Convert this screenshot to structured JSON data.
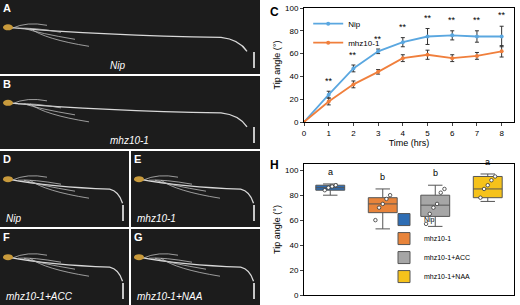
{
  "chart_data": [
    {
      "type": "line",
      "panel": "C",
      "x_label": "Time (hrs)",
      "y_label": "Tip angle (°)",
      "x": [
        0,
        1,
        2,
        3,
        4,
        5,
        6,
        7,
        8
      ],
      "xlim": [
        0,
        8.5
      ],
      "xticks": [
        0,
        1,
        2,
        3,
        4,
        5,
        6,
        7,
        8
      ],
      "ylim": [
        0,
        100
      ],
      "yticks": [
        0,
        20,
        40,
        60,
        80,
        100
      ],
      "legend": "top left",
      "marker": "circle",
      "series": [
        {
          "name": "Nip",
          "color": "#5aa7e0",
          "values": [
            0,
            24,
            47,
            62,
            70,
            75,
            76,
            75,
            75
          ],
          "errors": [
            0,
            3,
            3,
            2,
            4,
            7,
            4,
            5,
            9
          ]
        },
        {
          "name": "mhz10-1",
          "color": "#f07f3c",
          "values": [
            0,
            18,
            33,
            44,
            56,
            59,
            56,
            58,
            62
          ],
          "errors": [
            0,
            3,
            3,
            2,
            3,
            4,
            3,
            3,
            5
          ]
        }
      ],
      "annotations": [
        {
          "x": 1,
          "y": 30,
          "text": "**"
        },
        {
          "x": 2,
          "y": 53,
          "text": "**"
        },
        {
          "x": 3,
          "y": 67,
          "text": "**"
        },
        {
          "x": 4,
          "y": 77,
          "text": "**"
        },
        {
          "x": 5,
          "y": 85,
          "text": "**"
        },
        {
          "x": 6,
          "y": 83,
          "text": "**"
        },
        {
          "x": 7,
          "y": 83,
          "text": "**"
        },
        {
          "x": 8,
          "y": 88,
          "text": "**"
        }
      ]
    },
    {
      "type": "box",
      "panel": "H",
      "y_label": "Tip angle (°)",
      "ylim": [
        0,
        105
      ],
      "yticks": [
        0,
        20,
        40,
        60,
        80,
        100
      ],
      "tick_labels": "y",
      "legend": "bottom center",
      "boxes": [
        {
          "name": "Nip",
          "color": "#2e6db4",
          "min": 80,
          "q1": 84,
          "median": 86,
          "q3": 88,
          "max": 89,
          "points": [
            84,
            86,
            87,
            88
          ],
          "letter": "a",
          "letter_y": 93
        },
        {
          "name": "mhz10-1",
          "color": "#e8843b",
          "min": 53,
          "q1": 66,
          "median": 73,
          "q3": 78,
          "max": 85,
          "points": [
            60,
            70,
            73,
            77,
            80
          ],
          "letter": "b",
          "letter_y": 89
        },
        {
          "name": "mhz10-1+ACC",
          "color": "#a6a6a6",
          "min": 55,
          "q1": 63,
          "median": 72,
          "q3": 80,
          "max": 88,
          "points": [
            57,
            65,
            70,
            73,
            82,
            85
          ],
          "letter": "b",
          "letter_y": 92
        },
        {
          "name": "mhz10-1+NAA",
          "color": "#f5c21b",
          "min": 75,
          "q1": 78,
          "median": 85,
          "q3": 95,
          "max": 97,
          "points": [
            78,
            85,
            88,
            92,
            95
          ],
          "letter": "a",
          "letter_y": 101
        }
      ]
    }
  ],
  "image_panels": [
    {
      "panel": "A",
      "label": "Nip"
    },
    {
      "panel": "B",
      "label": "mhz10-1"
    },
    {
      "panel": "D",
      "label": "Nip"
    },
    {
      "panel": "E",
      "label": "mhz10-1"
    },
    {
      "panel": "F",
      "label": "mhz10-1+ACC"
    },
    {
      "panel": "G",
      "label": "mhz10-1+NAA"
    }
  ]
}
